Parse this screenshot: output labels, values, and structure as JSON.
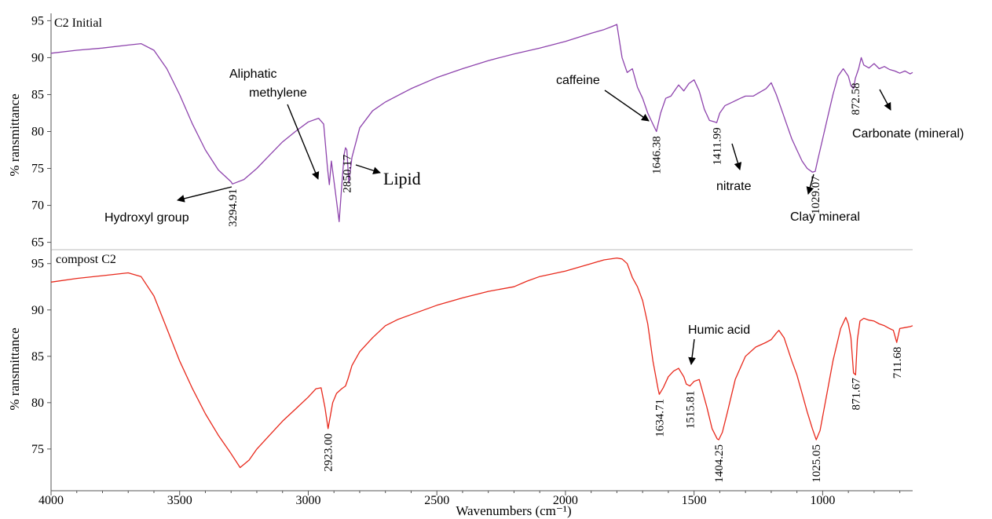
{
  "chart_data": [
    {
      "type": "line",
      "title": "C2 Initial",
      "ylabel": "% ransmittance",
      "xlabel": "Wavenumbers (cm⁻¹)",
      "xlim": [
        4000,
        650
      ],
      "ylim": [
        64,
        96
      ],
      "y_ticks": [
        65,
        70,
        75,
        80,
        85,
        90,
        95
      ],
      "color": "#8e44ad",
      "series": [
        {
          "x": [
            4000,
            3900,
            3800,
            3700,
            3650,
            3600,
            3550,
            3500,
            3450,
            3400,
            3350,
            3300,
            3295,
            3250,
            3200,
            3150,
            3100,
            3050,
            3000,
            2960,
            2940,
            2925,
            2918,
            2910,
            2895,
            2880,
            2870,
            2860,
            2855,
            2850,
            2842,
            2830,
            2800,
            2750,
            2700,
            2600,
            2500,
            2400,
            2300,
            2200,
            2100,
            2000,
            1900,
            1850,
            1820,
            1800,
            1780,
            1760,
            1740,
            1720,
            1700,
            1680,
            1660,
            1646,
            1630,
            1610,
            1590,
            1570,
            1560,
            1540,
            1520,
            1500,
            1480,
            1460,
            1440,
            1420,
            1412,
            1400,
            1380,
            1350,
            1320,
            1300,
            1270,
            1250,
            1220,
            1200,
            1180,
            1160,
            1140,
            1120,
            1100,
            1080,
            1060,
            1040,
            1029,
            1020,
            1000,
            980,
            960,
            940,
            920,
            900,
            890,
            880,
            873,
            860,
            850,
            840,
            820,
            800,
            780,
            760,
            740,
            720,
            700,
            680,
            660,
            650
          ],
          "y": [
            90.6,
            91.0,
            91.3,
            91.7,
            91.9,
            91.0,
            88.5,
            85.0,
            81.0,
            77.5,
            74.8,
            73.2,
            72.9,
            73.5,
            75.0,
            76.8,
            78.6,
            80.0,
            81.3,
            81.8,
            81.0,
            75.0,
            72.8,
            76.0,
            72.0,
            67.8,
            72.5,
            77.0,
            77.8,
            77.5,
            73.0,
            76.5,
            80.5,
            82.8,
            84.0,
            85.8,
            87.3,
            88.5,
            89.6,
            90.5,
            91.3,
            92.2,
            93.3,
            93.8,
            94.2,
            94.5,
            90.0,
            88.0,
            88.5,
            86.0,
            84.5,
            82.5,
            81.0,
            80.0,
            82.5,
            84.5,
            84.8,
            85.8,
            86.3,
            85.5,
            86.5,
            87.0,
            85.5,
            83.0,
            81.5,
            81.3,
            81.2,
            82.5,
            83.5,
            84.0,
            84.5,
            84.8,
            84.8,
            85.2,
            85.8,
            86.6,
            85.0,
            83.0,
            81.0,
            79.0,
            77.5,
            76.0,
            75.0,
            74.5,
            74.6,
            76.0,
            79.0,
            82.0,
            85.0,
            87.5,
            88.5,
            87.5,
            86.2,
            85.8,
            87.2,
            88.5,
            90.0,
            89.0,
            88.6,
            89.2,
            88.5,
            88.8,
            88.4,
            88.2,
            87.9,
            88.2,
            87.8,
            88.0
          ]
        }
      ],
      "peak_labels": [
        {
          "x": 3294.91,
          "text": "3294.91"
        },
        {
          "x": 2850.17,
          "text": "2850.17"
        },
        {
          "x": 1646.38,
          "text": "1646.38"
        },
        {
          "x": 1411.99,
          "text": "1411.99"
        },
        {
          "x": 1029.07,
          "text": "1029.07"
        },
        {
          "x": 872.58,
          "text": "872.58"
        }
      ],
      "annotations": [
        "Hydroxyl group",
        "Aliphatic",
        "methylene",
        "Lipid",
        "caffeine",
        "nitrate",
        "Clay mineral",
        "Carbonate (mineral)"
      ]
    },
    {
      "type": "line",
      "title": "compost C2",
      "ylabel": "% ransmittance",
      "xlabel": "Wavenumbers (cm⁻¹)",
      "xlim": [
        4000,
        650
      ],
      "ylim": [
        70.5,
        96.5
      ],
      "y_ticks": [
        75,
        80,
        85,
        90,
        95
      ],
      "x_ticks": [
        4000,
        3500,
        3000,
        2500,
        2000,
        1500,
        1000
      ],
      "color": "#e8291c",
      "series": [
        {
          "x": [
            4000,
            3900,
            3800,
            3700,
            3650,
            3600,
            3550,
            3500,
            3450,
            3400,
            3350,
            3300,
            3265,
            3230,
            3200,
            3150,
            3100,
            3050,
            3000,
            2970,
            2950,
            2935,
            2923,
            2905,
            2890,
            2870,
            2855,
            2845,
            2830,
            2800,
            2750,
            2700,
            2650,
            2600,
            2500,
            2400,
            2300,
            2200,
            2150,
            2100,
            2000,
            1900,
            1850,
            1800,
            1780,
            1760,
            1740,
            1720,
            1700,
            1680,
            1660,
            1640,
            1635,
            1620,
            1600,
            1580,
            1560,
            1540,
            1530,
            1516,
            1500,
            1480,
            1470,
            1450,
            1430,
            1410,
            1404,
            1390,
            1370,
            1340,
            1300,
            1260,
            1220,
            1200,
            1180,
            1170,
            1150,
            1120,
            1100,
            1080,
            1060,
            1040,
            1025,
            1010,
            990,
            960,
            930,
            910,
            900,
            890,
            880,
            872,
            865,
            855,
            840,
            820,
            800,
            780,
            760,
            740,
            725,
            712,
            700,
            680,
            660,
            650
          ],
          "y": [
            93.0,
            93.4,
            93.7,
            94.0,
            93.6,
            91.5,
            88.0,
            84.5,
            81.5,
            78.8,
            76.5,
            74.5,
            73.0,
            73.8,
            75.0,
            76.5,
            78.0,
            79.3,
            80.6,
            81.5,
            81.6,
            79.5,
            77.2,
            80.0,
            81.0,
            81.5,
            81.8,
            82.6,
            84.0,
            85.5,
            87.0,
            88.3,
            89.0,
            89.5,
            90.5,
            91.3,
            92.0,
            92.5,
            93.1,
            93.6,
            94.2,
            95.0,
            95.4,
            95.6,
            95.5,
            95.0,
            93.5,
            92.5,
            91.0,
            88.5,
            84.5,
            81.5,
            80.9,
            81.6,
            82.8,
            83.4,
            83.7,
            82.8,
            82.0,
            81.8,
            82.3,
            82.5,
            81.5,
            79.5,
            77.2,
            76.1,
            76.0,
            76.8,
            79.0,
            82.5,
            85.0,
            86.0,
            86.5,
            86.8,
            87.5,
            87.8,
            87.0,
            84.5,
            83.0,
            81.0,
            79.0,
            77.2,
            76.0,
            77.0,
            80.0,
            84.5,
            88.0,
            89.2,
            88.5,
            87.0,
            83.2,
            83.0,
            86.8,
            88.8,
            89.1,
            88.9,
            88.8,
            88.5,
            88.3,
            88.0,
            87.8,
            86.5,
            88.0,
            88.1,
            88.2,
            88.3
          ]
        }
      ],
      "peak_labels": [
        {
          "x": 2923.0,
          "text": "2923.00"
        },
        {
          "x": 1634.71,
          "text": "1634.71"
        },
        {
          "x": 1515.81,
          "text": "1515.81"
        },
        {
          "x": 1404.25,
          "text": "1404.25"
        },
        {
          "x": 1025.05,
          "text": "1025.05"
        },
        {
          "x": 871.67,
          "text": "871.67"
        },
        {
          "x": 711.68,
          "text": "711.68"
        }
      ],
      "annotations": [
        "Humic acid"
      ]
    }
  ]
}
